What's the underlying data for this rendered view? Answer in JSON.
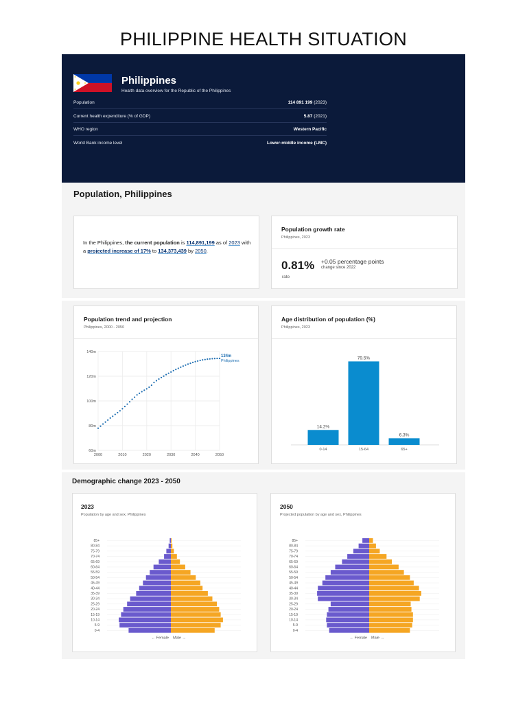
{
  "page_title": "PHILIPPINE HEALTH SITUATION",
  "header": {
    "country": "Philippines",
    "subtitle": "Health data overview for the Republic of the Philippines",
    "flag_colors": {
      "blue": "#0038a8",
      "red": "#ce1126",
      "white": "#ffffff",
      "sun": "#fcd116"
    },
    "rows": [
      {
        "label": "Population",
        "value": "114 891 199",
        "year": "(2023)"
      },
      {
        "label": "Current health expenditure (% of GDP)",
        "value": "5.87",
        "year": "(2021)"
      },
      {
        "label": "WHO region",
        "value": "Western Pacific",
        "year": ""
      },
      {
        "label": "World Bank income level",
        "value": "Lower-middle income (LMC)",
        "year": ""
      }
    ]
  },
  "population_section": {
    "title": "Population, Philippines",
    "summary": {
      "t1": "In the Philippines, ",
      "t2": "the current population",
      "t3": " is ",
      "t4": "114,891,199",
      "t5": " as of ",
      "t6": "2023",
      "t7": " with a ",
      "t8": "projected increase of 17%",
      "t9": " to ",
      "t10": "134,373,439",
      "t11": " by ",
      "t12": "2050",
      "t13": "."
    },
    "growth": {
      "title": "Population growth rate",
      "subtitle": "Philippines, 2023",
      "value": "0.81%",
      "change": "+0.05 percentage points",
      "change_note": "change since 2022",
      "unit": "rate"
    }
  },
  "trend_card": {
    "title": "Population trend and projection",
    "subtitle": "Philippines, 2000 - 2050"
  },
  "age_card": {
    "title": "Age distribution of population (%)",
    "subtitle": "Philippines, 2023"
  },
  "demographic_section": {
    "title": "Demographic change 2023 - 2050",
    "left": {
      "title": "2023",
      "subtitle": "Population by age and sex, Philippines"
    },
    "right": {
      "title": "2050",
      "subtitle": "Projected population by age and sex, Philippines"
    }
  },
  "colors": {
    "navy": "#0b1a3a",
    "line_blue": "#1f6fb2",
    "bar_blue": "#0a8ccf",
    "female": "#6a5acd",
    "male": "#f5a623"
  },
  "chart_data": [
    {
      "type": "line",
      "title": "Population trend and projection",
      "x": [
        2000,
        2001,
        2002,
        2003,
        2004,
        2005,
        2006,
        2007,
        2008,
        2009,
        2010,
        2011,
        2012,
        2013,
        2014,
        2015,
        2016,
        2017,
        2018,
        2019,
        2020,
        2021,
        2022,
        2023,
        2024,
        2025,
        2026,
        2027,
        2028,
        2029,
        2030,
        2031,
        2032,
        2033,
        2034,
        2035,
        2036,
        2037,
        2038,
        2039,
        2040,
        2041,
        2042,
        2043,
        2044,
        2045,
        2046,
        2047,
        2048,
        2049,
        2050
      ],
      "series": [
        {
          "name": "Philippines",
          "values": [
            77.9,
            79.6,
            81.3,
            82.9,
            84.5,
            86.2,
            87.6,
            89.1,
            90.5,
            92.0,
            93.7,
            95.5,
            97.4,
            99.3,
            101.3,
            103.0,
            104.9,
            106.2,
            107.5,
            108.7,
            109.8,
            111.1,
            112.7,
            114.9,
            116.4,
            117.7,
            118.9,
            120.1,
            121.3,
            122.4,
            123.4,
            124.5,
            125.5,
            126.4,
            127.3,
            128.2,
            129.0,
            129.8,
            130.5,
            131.2,
            131.8,
            132.3,
            132.8,
            133.2,
            133.5,
            133.8,
            134.0,
            134.2,
            134.3,
            134.4,
            134.4
          ]
        }
      ],
      "end_label": "134m",
      "end_series_label": "Philippines",
      "xticks": [
        "2000",
        "2010",
        "2020",
        "2030",
        "2040",
        "2050"
      ],
      "xtick_values": [
        2000,
        2010,
        2020,
        2030,
        2040,
        2050
      ],
      "yticks": [
        "60m",
        "80m",
        "100m",
        "120m",
        "140m"
      ],
      "ytick_values": [
        60,
        80,
        100,
        120,
        140
      ],
      "ylim": [
        60,
        140
      ],
      "xlim": [
        2000,
        2050
      ],
      "grid": true
    },
    {
      "type": "bar",
      "title": "Age distribution of population (%)",
      "categories": [
        "0-14",
        "15-64",
        "65+"
      ],
      "values": [
        14.2,
        79.5,
        6.3
      ],
      "labels": [
        "14.2%",
        "79.5%",
        "6.3%"
      ],
      "ylim": [
        0,
        85
      ]
    },
    {
      "type": "bar",
      "subtype": "population-pyramid",
      "title": "2023",
      "categories": [
        "85+",
        "80-84",
        "75-79",
        "70-74",
        "65-69",
        "60-64",
        "55-59",
        "50-54",
        "45-49",
        "40-44",
        "35-39",
        "30-34",
        "25-29",
        "20-24",
        "15-19",
        "10-14",
        "5-9",
        "0-4"
      ],
      "series": [
        {
          "name": "Female",
          "values": [
            0.15,
            0.3,
            0.6,
            0.9,
            1.6,
            2.3,
            2.8,
            3.3,
            3.7,
            4.2,
            4.6,
            5.4,
            5.8,
            6.3,
            6.6,
            6.9,
            6.8,
            5.6
          ]
        },
        {
          "name": "Male",
          "values": [
            0.1,
            0.2,
            0.4,
            0.8,
            1.2,
            1.9,
            2.6,
            3.3,
            3.9,
            4.2,
            4.9,
            5.5,
            6.1,
            6.4,
            6.6,
            6.9,
            6.6,
            5.8
          ]
        }
      ],
      "axis_labels": {
        "female": "← Female",
        "male": "Male →"
      },
      "xlim": [
        -8,
        8
      ]
    },
    {
      "type": "bar",
      "subtype": "population-pyramid",
      "title": "2050",
      "categories": [
        "85+",
        "80-84",
        "75-79",
        "70-74",
        "65-69",
        "60-64",
        "55-59",
        "50-54",
        "45-49",
        "40-44",
        "35-39",
        "30-34",
        "25-29",
        "20-24",
        "15-19",
        "10-14",
        "5-9",
        "0-4"
      ],
      "series": [
        {
          "name": "Female",
          "values": [
            0.9,
            1.4,
            2.1,
            2.9,
            3.6,
            4.5,
            5.1,
            5.8,
            6.2,
            6.8,
            6.9,
            6.8,
            5.1,
            5.4,
            5.6,
            5.7,
            5.6,
            5.3
          ]
        },
        {
          "name": "Male",
          "values": [
            0.5,
            0.9,
            1.4,
            2.3,
            3.0,
            3.9,
            4.6,
            5.4,
            5.9,
            6.6,
            6.9,
            6.7,
            5.5,
            5.6,
            5.8,
            5.8,
            5.7,
            5.4
          ]
        }
      ],
      "axis_labels": {
        "female": "← Female",
        "male": "Male →"
      },
      "xlim": [
        -8,
        8
      ]
    }
  ]
}
